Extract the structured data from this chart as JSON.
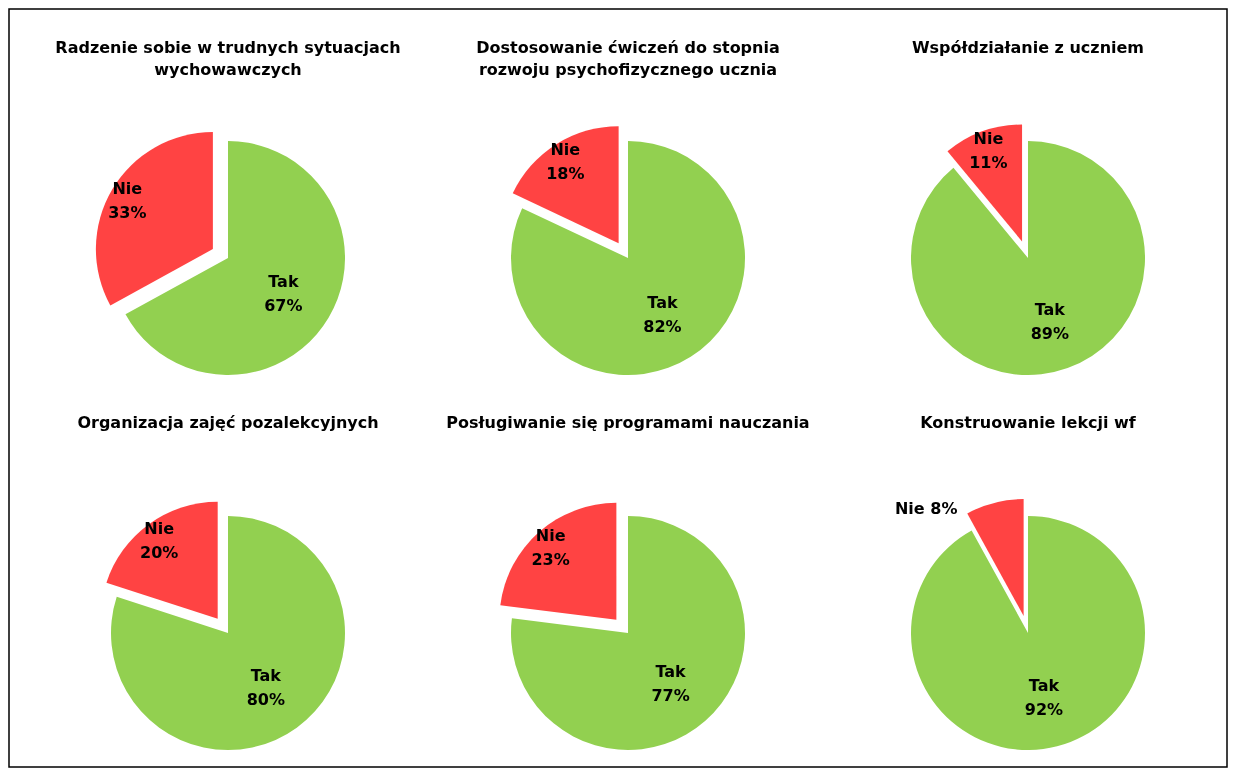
{
  "chart_data": [
    {
      "type": "pie",
      "title": "Radzenie sobie w trudnych sytuacjach wychowawczych",
      "categories": [
        "Tak",
        "Nie"
      ],
      "values": [
        67,
        33
      ],
      "value_labels": [
        "67%",
        "33%"
      ],
      "colors": [
        "#92d050",
        "#ff4343"
      ]
    },
    {
      "type": "pie",
      "title": "Dostosowanie ćwiczeń do stopnia rozwoju psychofizycznego ucznia",
      "categories": [
        "Tak",
        "Nie"
      ],
      "values": [
        82,
        18
      ],
      "value_labels": [
        "82%",
        "18%"
      ],
      "colors": [
        "#92d050",
        "#ff4343"
      ]
    },
    {
      "type": "pie",
      "title": "Współdziałanie z uczniem",
      "categories": [
        "Tak",
        "Nie"
      ],
      "values": [
        89,
        11
      ],
      "value_labels": [
        "89%",
        "11%"
      ],
      "colors": [
        "#92d050",
        "#ff4343"
      ]
    },
    {
      "type": "pie",
      "title": "Organizacja zajęć pozalekcyjnych",
      "categories": [
        "Tak",
        "Nie"
      ],
      "values": [
        80,
        20
      ],
      "value_labels": [
        "80%",
        "20%"
      ],
      "colors": [
        "#92d050",
        "#ff4343"
      ]
    },
    {
      "type": "pie",
      "title": "Posługiwanie się programami nauczania",
      "categories": [
        "Tak",
        "Nie"
      ],
      "values": [
        77,
        23
      ],
      "value_labels": [
        "77%",
        "23%"
      ],
      "colors": [
        "#92d050",
        "#ff4343"
      ]
    },
    {
      "type": "pie",
      "title": "Konstruowanie lekcji wf",
      "categories": [
        "Tak",
        "Nie"
      ],
      "values": [
        92,
        8
      ],
      "value_labels": [
        "92%",
        "8%"
      ],
      "colors": [
        "#92d050",
        "#ff4343"
      ]
    }
  ]
}
